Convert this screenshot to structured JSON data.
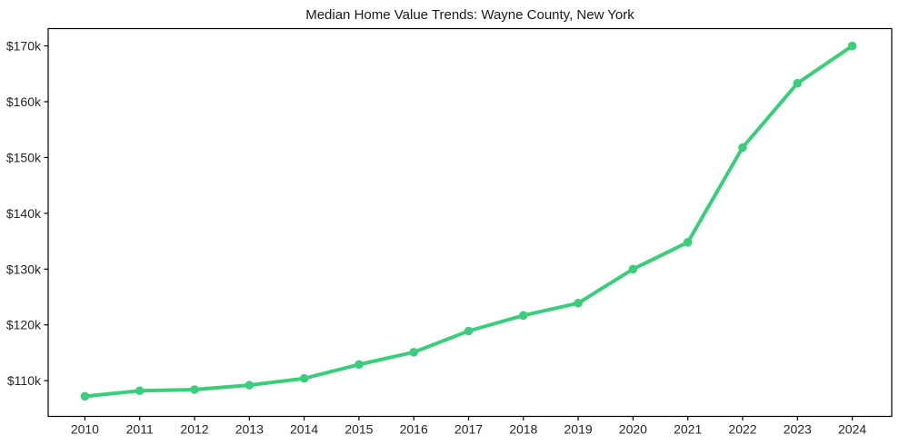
{
  "chart_data": {
    "type": "line",
    "title": "Median Home Value Trends: Wayne County, New York",
    "series_name": "Median home value",
    "x": [
      2010,
      2011,
      2012,
      2013,
      2014,
      2015,
      2016,
      2017,
      2018,
      2019,
      2020,
      2021,
      2022,
      2023,
      2024
    ],
    "x_labels": [
      "2010",
      "2011",
      "2012",
      "2013",
      "2014",
      "2015",
      "2016",
      "2017",
      "2018",
      "2019",
      "2020",
      "2021",
      "2022",
      "2023",
      "2024"
    ],
    "values": [
      107.2,
      108.2,
      108.4,
      109.2,
      110.4,
      112.9,
      115.1,
      118.9,
      121.7,
      123.9,
      130.0,
      134.8,
      151.8,
      163.3,
      170.0
    ],
    "values_unit": "thousand USD",
    "yticks": [
      110,
      120,
      130,
      140,
      150,
      160,
      170
    ],
    "ytick_labels": [
      "$110k",
      "$120k",
      "$130k",
      "$140k",
      "$150k",
      "$160k",
      "$170k"
    ],
    "xlim": [
      2009.33,
      2024.72
    ],
    "ylim": [
      103.6,
      173.1
    ],
    "grid": false,
    "legend": false,
    "xlabel": "",
    "ylabel": "",
    "line_color": "#3acd7a",
    "marker": "circle",
    "marker_color": "#3acd7a",
    "axis_color": "#000000",
    "tick_label_color": "#262626",
    "title_color": "#1a1a1a",
    "background_color": "#ffffff"
  }
}
